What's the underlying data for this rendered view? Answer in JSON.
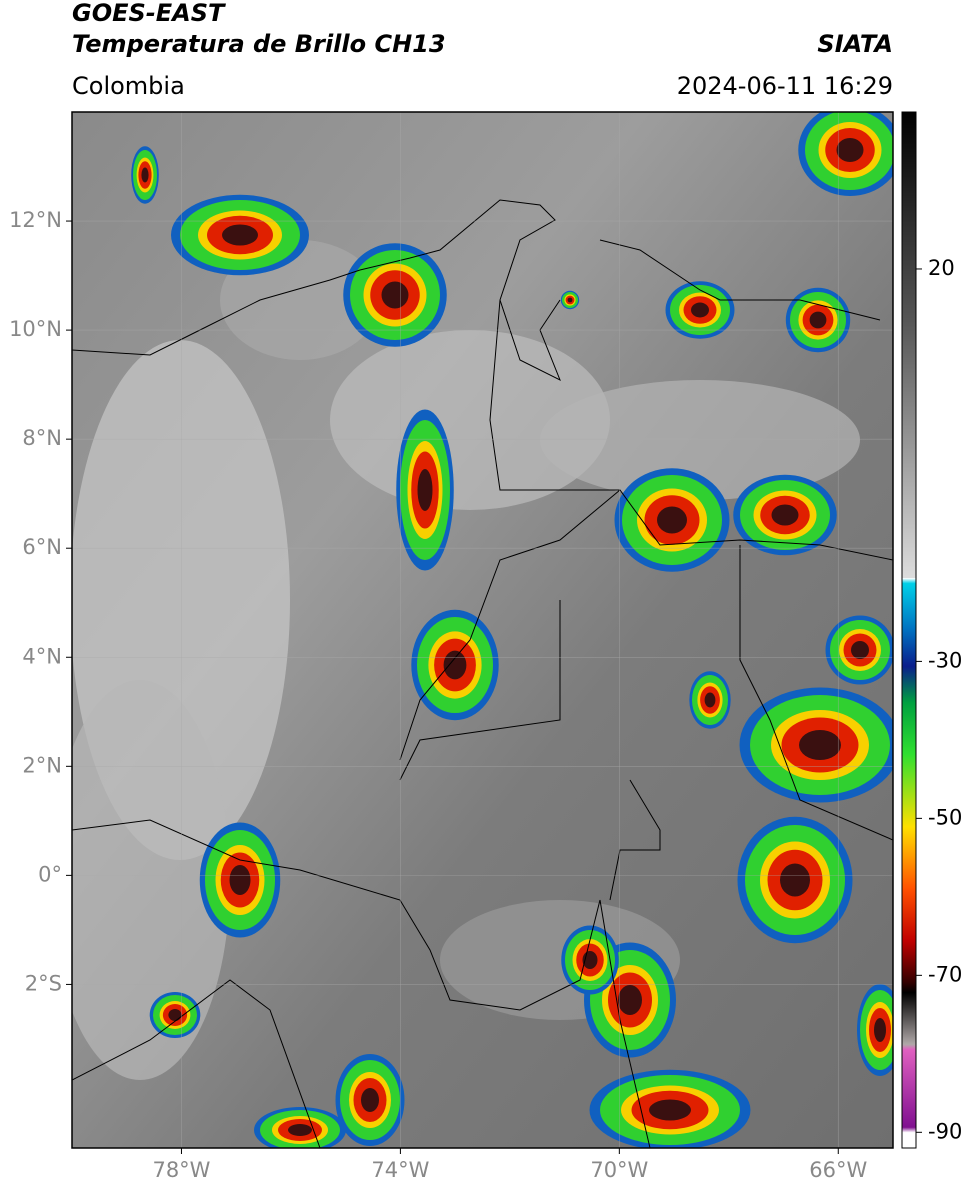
{
  "header": {
    "title": "GOES-EAST",
    "subtitle": "Temperatura de Brillo CH13",
    "agency": "SIATA",
    "region": "Colombia",
    "datetime": "2024-06-11 16:29"
  },
  "map": {
    "xlim": [
      -80,
      -65
    ],
    "ylim": [
      -5,
      14
    ],
    "xticks": [
      {
        "value": -78,
        "label": "78°W"
      },
      {
        "value": -74,
        "label": "74°W"
      },
      {
        "value": -70,
        "label": "70°W"
      },
      {
        "value": -66,
        "label": "66°W"
      }
    ],
    "yticks": [
      {
        "value": 12,
        "label": "12°N"
      },
      {
        "value": 10,
        "label": "10°N"
      },
      {
        "value": 8,
        "label": "8°N"
      },
      {
        "value": 6,
        "label": "6°N"
      },
      {
        "value": 4,
        "label": "4°N"
      },
      {
        "value": 2,
        "label": "2°N"
      },
      {
        "value": 0,
        "label": "0°"
      },
      {
        "value": -2,
        "label": "2°S"
      }
    ],
    "grid": true
  },
  "colorbar": {
    "clim": [
      -92,
      40
    ],
    "ticks": [
      20,
      -30,
      -50,
      -70,
      -90
    ]
  }
}
